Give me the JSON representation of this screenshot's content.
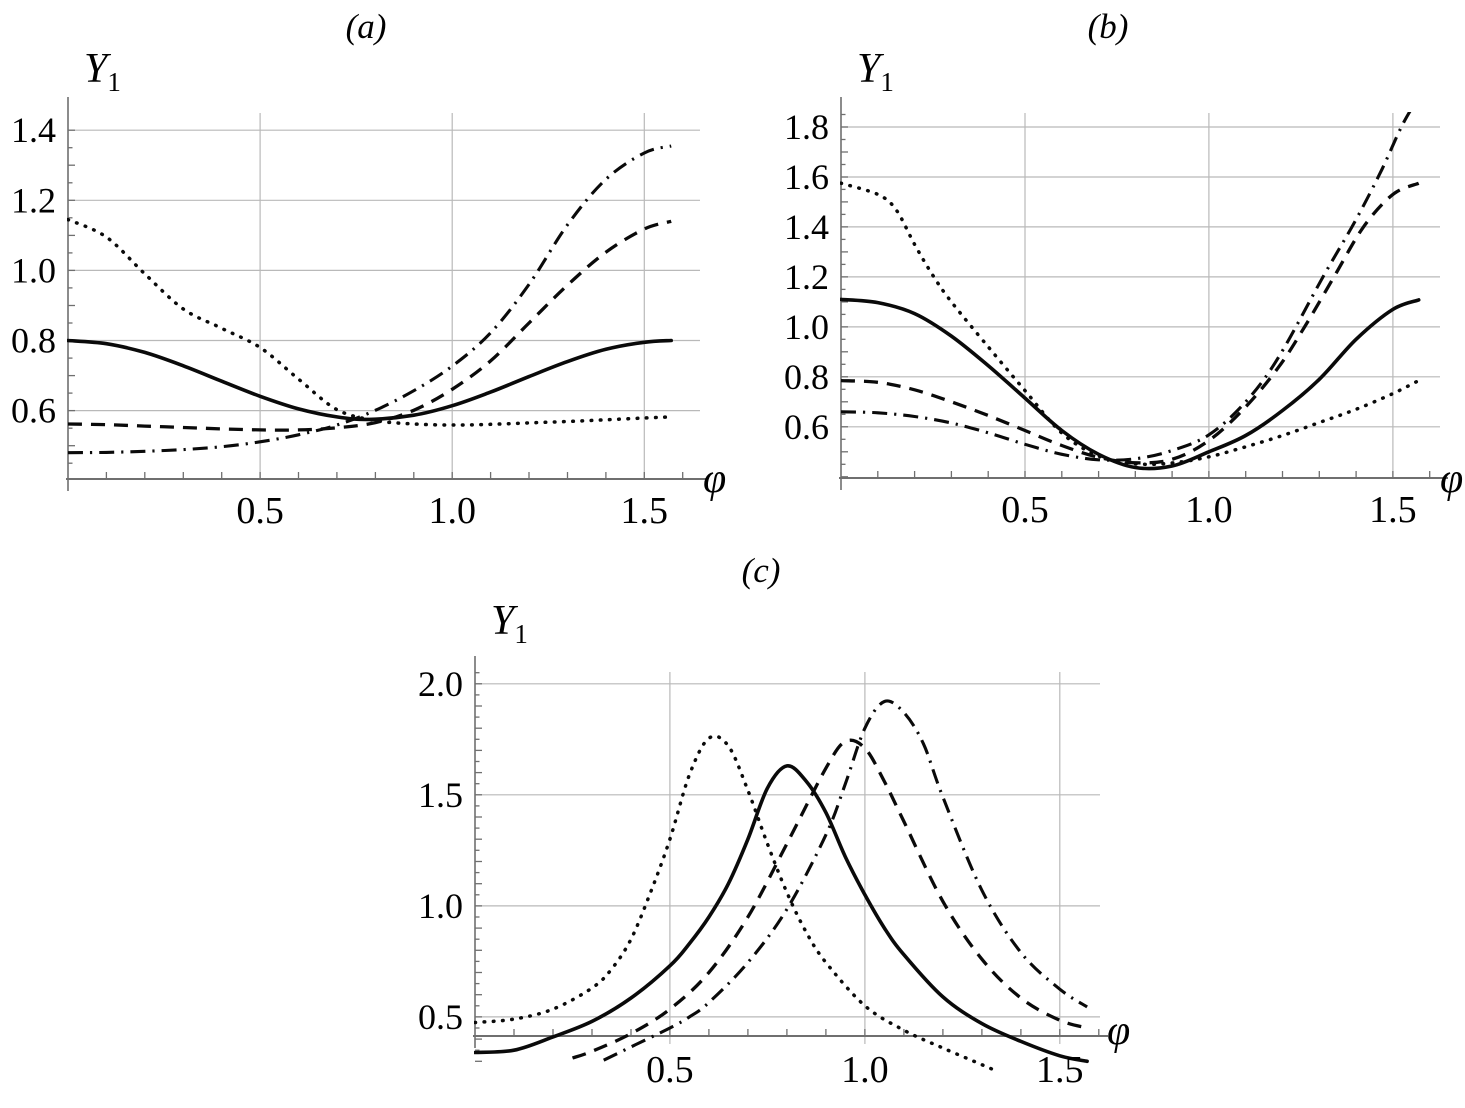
{
  "figure": {
    "background": "#ffffff",
    "text_color": "#000000",
    "grid_color": "#b9b9b9",
    "axis_color": "#6f6f6f",
    "curve_color": "#0a0a0a"
  },
  "chart_data": [
    {
      "id": "a",
      "type": "line",
      "title": "(a)",
      "ylabel_base": "Y",
      "ylabel_sub": "1",
      "xlabel": "φ",
      "grid": true,
      "legend": "none",
      "xlim": [
        0,
        1.645
      ],
      "ylim": [
        0.405,
        1.449
      ],
      "x_axis_value": 0.405,
      "x_ticks": [
        0.5,
        1.0,
        1.5
      ],
      "x_tick_labels": [
        "0.5",
        "1.0",
        "1.5"
      ],
      "y_ticks": [
        0.6,
        0.8,
        1.0,
        1.2,
        1.4
      ],
      "y_tick_labels": [
        "0.6",
        "0.8",
        "1.0",
        "1.2",
        "1.4"
      ],
      "series": [
        {
          "name": "dotted-curve",
          "style": "dotted",
          "points": [
            [
              0,
              1.145
            ],
            [
              0.1,
              1.095
            ],
            [
              0.2,
              0.99
            ],
            [
              0.3,
              0.89
            ],
            [
              0.4,
              0.835
            ],
            [
              0.5,
              0.78
            ],
            [
              0.6,
              0.69
            ],
            [
              0.7,
              0.603
            ],
            [
              0.8,
              0.572
            ],
            [
              0.9,
              0.562
            ],
            [
              1.0,
              0.559
            ],
            [
              1.1,
              0.561
            ],
            [
              1.2,
              0.565
            ],
            [
              1.3,
              0.569
            ],
            [
              1.4,
              0.574
            ],
            [
              1.5,
              0.579
            ],
            [
              1.57,
              0.582
            ]
          ]
        },
        {
          "name": "solid-curve",
          "style": "solid",
          "points": [
            [
              0,
              0.8
            ],
            [
              0.1,
              0.791
            ],
            [
              0.2,
              0.766
            ],
            [
              0.3,
              0.728
            ],
            [
              0.4,
              0.684
            ],
            [
              0.5,
              0.641
            ],
            [
              0.6,
              0.605
            ],
            [
              0.7,
              0.582
            ],
            [
              0.785,
              0.575
            ],
            [
              0.9,
              0.587
            ],
            [
              1.0,
              0.614
            ],
            [
              1.1,
              0.653
            ],
            [
              1.2,
              0.697
            ],
            [
              1.3,
              0.74
            ],
            [
              1.4,
              0.775
            ],
            [
              1.5,
              0.795
            ],
            [
              1.57,
              0.8
            ]
          ]
        },
        {
          "name": "dashed-curve",
          "style": "dashed",
          "points": [
            [
              0,
              0.562
            ],
            [
              0.1,
              0.56
            ],
            [
              0.2,
              0.556
            ],
            [
              0.3,
              0.552
            ],
            [
              0.4,
              0.548
            ],
            [
              0.5,
              0.545
            ],
            [
              0.6,
              0.545
            ],
            [
              0.7,
              0.551
            ],
            [
              0.8,
              0.566
            ],
            [
              0.9,
              0.601
            ],
            [
              1.0,
              0.661
            ],
            [
              1.1,
              0.742
            ],
            [
              1.2,
              0.85
            ],
            [
              1.3,
              0.958
            ],
            [
              1.4,
              1.052
            ],
            [
              1.5,
              1.118
            ],
            [
              1.57,
              1.14
            ]
          ]
        },
        {
          "name": "dash-dot-curve",
          "style": "dashdot",
          "points": [
            [
              0,
              0.48
            ],
            [
              0.1,
              0.481
            ],
            [
              0.2,
              0.484
            ],
            [
              0.3,
              0.489
            ],
            [
              0.4,
              0.497
            ],
            [
              0.5,
              0.511
            ],
            [
              0.6,
              0.531
            ],
            [
              0.7,
              0.559
            ],
            [
              0.8,
              0.601
            ],
            [
              0.9,
              0.657
            ],
            [
              1.0,
              0.727
            ],
            [
              1.1,
              0.822
            ],
            [
              1.2,
              0.96
            ],
            [
              1.3,
              1.13
            ],
            [
              1.4,
              1.26
            ],
            [
              1.5,
              1.335
            ],
            [
              1.57,
              1.355
            ]
          ]
        }
      ]
    },
    {
      "id": "b",
      "type": "line",
      "title": "(b)",
      "ylabel_base": "Y",
      "ylabel_sub": "1",
      "xlabel": "φ",
      "grid": true,
      "legend": "none",
      "xlim": [
        0,
        1.628
      ],
      "ylim": [
        0.395,
        1.856
      ],
      "x_axis_value": 0.395,
      "x_ticks": [
        0.5,
        1.0,
        1.5
      ],
      "x_tick_labels": [
        "0.5",
        "1.0",
        "1.5"
      ],
      "y_ticks": [
        0.6,
        0.8,
        1.0,
        1.2,
        1.4,
        1.6,
        1.8
      ],
      "y_tick_labels": [
        "0.6",
        "0.8",
        "1.0",
        "1.2",
        "1.4",
        "1.6",
        "1.8"
      ],
      "series": [
        {
          "name": "dotted-curve",
          "style": "dotted",
          "points": [
            [
              0,
              1.575
            ],
            [
              0.1,
              1.53
            ],
            [
              0.15,
              1.468
            ],
            [
              0.2,
              1.33
            ],
            [
              0.25,
              1.205
            ],
            [
              0.3,
              1.1
            ],
            [
              0.4,
              0.92
            ],
            [
              0.5,
              0.745
            ],
            [
              0.6,
              0.575
            ],
            [
              0.7,
              0.483
            ],
            [
              0.8,
              0.452
            ],
            [
              0.9,
              0.455
            ],
            [
              1.0,
              0.48
            ],
            [
              1.1,
              0.52
            ],
            [
              1.2,
              0.565
            ],
            [
              1.3,
              0.617
            ],
            [
              1.4,
              0.67
            ],
            [
              1.5,
              0.733
            ],
            [
              1.57,
              0.785
            ]
          ]
        },
        {
          "name": "solid-curve",
          "style": "solid",
          "points": [
            [
              0,
              1.11
            ],
            [
              0.1,
              1.097
            ],
            [
              0.2,
              1.053
            ],
            [
              0.3,
              0.963
            ],
            [
              0.4,
              0.845
            ],
            [
              0.5,
              0.715
            ],
            [
              0.6,
              0.585
            ],
            [
              0.7,
              0.49
            ],
            [
              0.8,
              0.437
            ],
            [
              0.9,
              0.443
            ],
            [
              1.0,
              0.5
            ],
            [
              1.1,
              0.565
            ],
            [
              1.2,
              0.665
            ],
            [
              1.3,
              0.79
            ],
            [
              1.4,
              0.95
            ],
            [
              1.5,
              1.07
            ],
            [
              1.57,
              1.108
            ]
          ]
        },
        {
          "name": "dashed-curve",
          "style": "dashed",
          "points": [
            [
              0,
              0.785
            ],
            [
              0.1,
              0.778
            ],
            [
              0.2,
              0.748
            ],
            [
              0.3,
              0.7
            ],
            [
              0.4,
              0.645
            ],
            [
              0.5,
              0.585
            ],
            [
              0.6,
              0.525
            ],
            [
              0.7,
              0.478
            ],
            [
              0.8,
              0.456
            ],
            [
              0.9,
              0.47
            ],
            [
              1.0,
              0.545
            ],
            [
              1.1,
              0.68
            ],
            [
              1.19,
              0.84
            ],
            [
              1.26,
              1.0
            ],
            [
              1.34,
              1.2
            ],
            [
              1.42,
              1.4
            ],
            [
              1.5,
              1.53
            ],
            [
              1.57,
              1.575
            ]
          ]
        },
        {
          "name": "dash-dot-curve",
          "style": "dashdot",
          "points": [
            [
              0,
              0.66
            ],
            [
              0.1,
              0.656
            ],
            [
              0.2,
              0.641
            ],
            [
              0.3,
              0.615
            ],
            [
              0.4,
              0.576
            ],
            [
              0.5,
              0.53
            ],
            [
              0.6,
              0.49
            ],
            [
              0.7,
              0.468
            ],
            [
              0.8,
              0.472
            ],
            [
              0.9,
              0.505
            ],
            [
              1.0,
              0.568
            ],
            [
              1.1,
              0.7
            ],
            [
              1.19,
              0.88
            ],
            [
              1.31,
              1.2
            ],
            [
              1.4,
              1.43
            ],
            [
              1.47,
              1.63
            ],
            [
              1.53,
              1.82
            ],
            [
              1.6,
              1.99
            ]
          ]
        }
      ]
    },
    {
      "id": "c",
      "type": "line",
      "title": "(c)",
      "ylabel_base": "Y",
      "ylabel_sub": "1",
      "xlabel": "φ",
      "grid": true,
      "legend": "none",
      "xlim": [
        0,
        1.603
      ],
      "ylim": [
        0.252,
        2.053
      ],
      "x_axis_value": 0.414,
      "x_ticks": [
        0.5,
        1.0,
        1.5
      ],
      "x_tick_labels": [
        "0.5",
        "1.0",
        "1.5"
      ],
      "y_ticks": [
        0.5,
        1.0,
        1.5,
        2.0
      ],
      "y_tick_labels": [
        "0.5",
        "1.0",
        "1.5",
        "2.0"
      ],
      "series": [
        {
          "name": "dotted-curve",
          "style": "dotted",
          "points": [
            [
              0,
              0.475
            ],
            [
              0.1,
              0.49
            ],
            [
              0.2,
              0.535
            ],
            [
              0.3,
              0.63
            ],
            [
              0.35,
              0.715
            ],
            [
              0.4,
              0.85
            ],
            [
              0.45,
              1.06
            ],
            [
              0.5,
              1.3
            ],
            [
              0.55,
              1.59
            ],
            [
              0.6,
              1.755
            ],
            [
              0.65,
              1.72
            ],
            [
              0.7,
              1.52
            ],
            [
              0.75,
              1.28
            ],
            [
              0.8,
              1.06
            ],
            [
              0.85,
              0.88
            ],
            [
              0.9,
              0.745
            ],
            [
              1.0,
              0.55
            ],
            [
              1.1,
              0.44
            ],
            [
              1.2,
              0.36
            ],
            [
              1.3,
              0.285
            ],
            [
              1.33,
              0.262
            ]
          ]
        },
        {
          "name": "solid-curve",
          "style": "solid",
          "points": [
            [
              0,
              0.34
            ],
            [
              0.1,
              0.35
            ],
            [
              0.2,
              0.41
            ],
            [
              0.3,
              0.48
            ],
            [
              0.4,
              0.585
            ],
            [
              0.5,
              0.73
            ],
            [
              0.55,
              0.83
            ],
            [
              0.6,
              0.95
            ],
            [
              0.65,
              1.1
            ],
            [
              0.7,
              1.3
            ],
            [
              0.75,
              1.53
            ],
            [
              0.8,
              1.63
            ],
            [
              0.85,
              1.56
            ],
            [
              0.9,
              1.42
            ],
            [
              0.95,
              1.22
            ],
            [
              1.0,
              1.05
            ],
            [
              1.05,
              0.9
            ],
            [
              1.1,
              0.78
            ],
            [
              1.2,
              0.59
            ],
            [
              1.3,
              0.47
            ],
            [
              1.4,
              0.39
            ],
            [
              1.5,
              0.325
            ],
            [
              1.57,
              0.3
            ]
          ]
        },
        {
          "name": "dashed-curve",
          "style": "dashed",
          "points": [
            [
              0.25,
              0.315
            ],
            [
              0.3,
              0.345
            ],
            [
              0.4,
              0.425
            ],
            [
              0.5,
              0.535
            ],
            [
              0.6,
              0.7
            ],
            [
              0.7,
              0.95
            ],
            [
              0.8,
              1.28
            ],
            [
              0.9,
              1.62
            ],
            [
              0.95,
              1.74
            ],
            [
              1.0,
              1.71
            ],
            [
              1.05,
              1.56
            ],
            [
              1.1,
              1.38
            ],
            [
              1.2,
              1.02
            ],
            [
              1.3,
              0.76
            ],
            [
              1.4,
              0.585
            ],
            [
              1.5,
              0.485
            ],
            [
              1.57,
              0.45
            ]
          ]
        },
        {
          "name": "dash-dot-curve",
          "style": "dashdot",
          "points": [
            [
              0.33,
              0.305
            ],
            [
              0.4,
              0.365
            ],
            [
              0.5,
              0.45
            ],
            [
              0.55,
              0.5
            ],
            [
              0.6,
              0.565
            ],
            [
              0.7,
              0.745
            ],
            [
              0.8,
              0.985
            ],
            [
              0.9,
              1.32
            ],
            [
              0.95,
              1.55
            ],
            [
              1.0,
              1.8
            ],
            [
              1.05,
              1.92
            ],
            [
              1.1,
              1.87
            ],
            [
              1.15,
              1.73
            ],
            [
              1.2,
              1.49
            ],
            [
              1.3,
              1.07
            ],
            [
              1.4,
              0.79
            ],
            [
              1.5,
              0.625
            ],
            [
              1.57,
              0.545
            ]
          ]
        }
      ]
    }
  ]
}
